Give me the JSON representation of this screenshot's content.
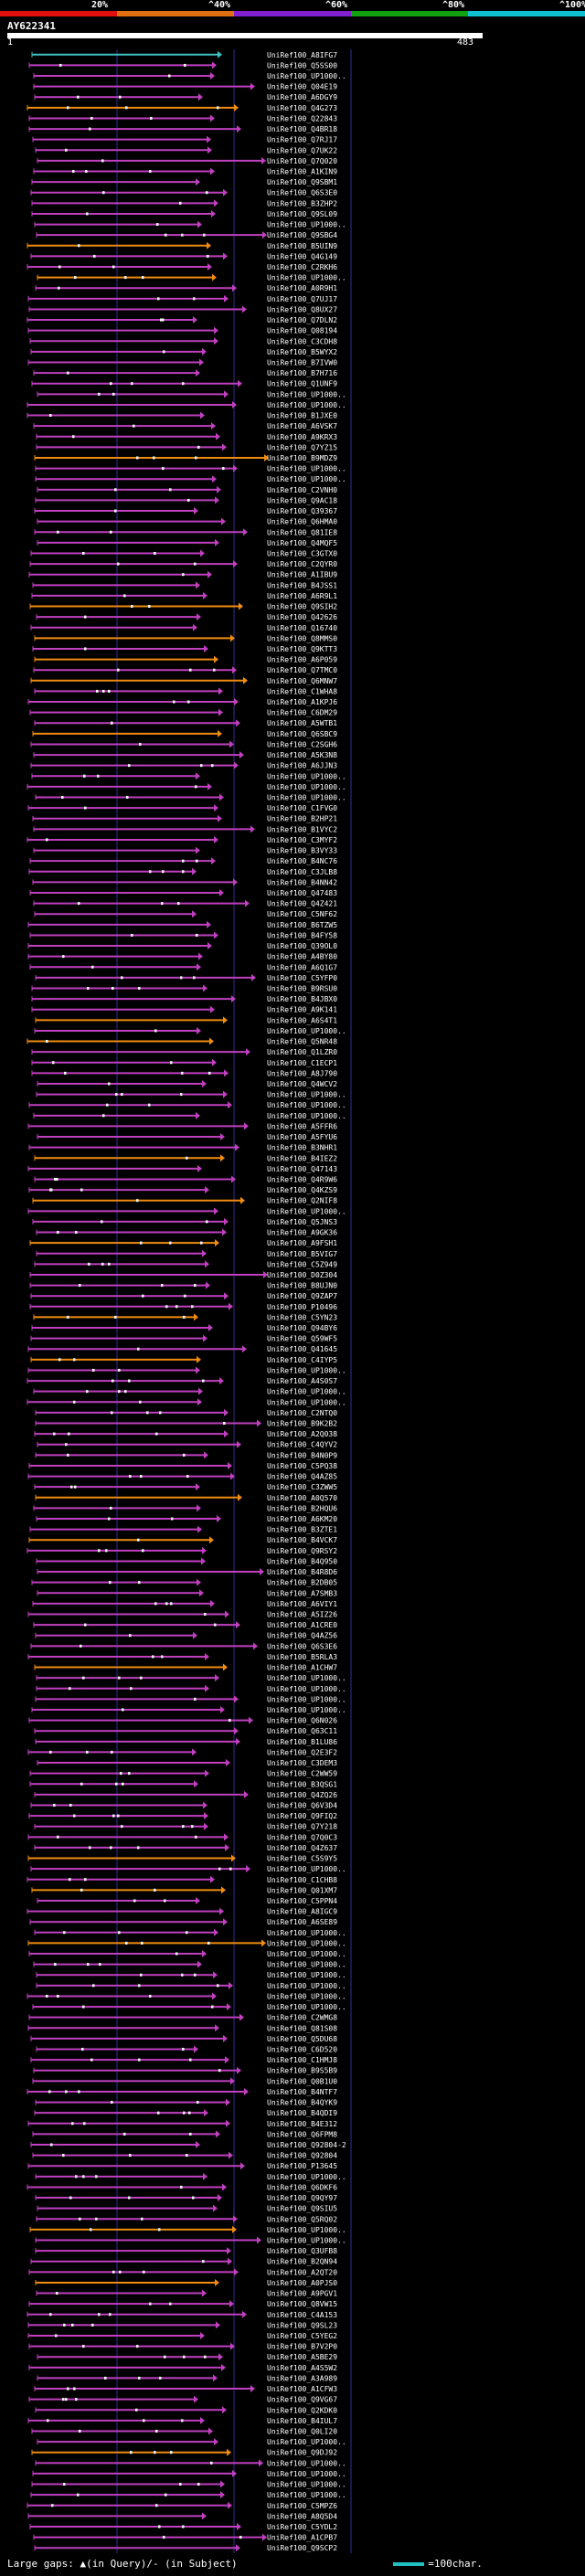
{
  "scale": {
    "labels": [
      "20%",
      "^40%",
      "^60%",
      "^80%",
      "^100%"
    ],
    "colors": [
      "#e01010",
      "#e07010",
      "#8020d0",
      "#10a010",
      "#10c0d0"
    ]
  },
  "query": {
    "id": "AY622341",
    "start": "1",
    "end": "483"
  },
  "colors": {
    "magenta": "#c040c0",
    "orange": "#f08c10",
    "cyan": "#40c0c0",
    "grid": "#303090",
    "label": "#ffffff"
  },
  "hits": [
    "UniRef100_A8IFG7",
    "UniRef100_Q5SS00",
    "UniRef100_UP1000..",
    "UniRef100_Q04E19",
    "UniRef100_A6DGY9",
    "UniRef100_Q4G273",
    "UniRef100_Q22843",
    "UniRef100_Q4BR18",
    "UniRef100_Q7RJ17",
    "UniRef100_Q7UK22",
    "UniRef100_Q7Q020",
    "UniRef100_A1KIN9",
    "UniRef100_Q9SBM1",
    "UniRef100_Q6S3E0",
    "UniRef100_B3ZHP2",
    "UniRef100_Q9SL09",
    "UniRef100_UP1000..",
    "UniRef100_Q9SBG4",
    "UniRef100_B5UIN9",
    "UniRef100_Q4G149",
    "UniRef100_C2RKH6",
    "UniRef100_UP1000..",
    "UniRef100_A0R9H1",
    "UniRef100_Q7UJ17",
    "UniRef100_Q8UX27",
    "UniRef100_Q7DLN2",
    "UniRef100_Q08194",
    "UniRef100_C3CDH8",
    "UniRef100_B5WYX2",
    "UniRef100_B7IVW0",
    "UniRef100_B7H716",
    "UniRef100_Q1UNF9",
    "UniRef100_UP1000..",
    "UniRef100_UP1000..",
    "UniRef100_B1JXE0",
    "UniRef100_A6VSK7",
    "UniRef100_A9KRX3",
    "UniRef100_Q7YZ15",
    "UniRef100_B9MDZ9",
    "UniRef100_UP1000..",
    "UniRef100_UP1000..",
    "UniRef100_C2VNH0",
    "UniRef100_Q9AC18",
    "UniRef100_Q39367",
    "UniRef100_Q6HMA0",
    "UniRef100_Q81IE8",
    "UniRef100_Q4MQF5",
    "UniRef100_C3GTX0",
    "UniRef100_C2QYR0",
    "UniRef100_A1IBU9",
    "UniRef100_B4JSS1",
    "UniRef100_A6R9L1",
    "UniRef100_Q9SIH2",
    "UniRef100_Q42626",
    "UniRef100_Q16740",
    "UniRef100_Q8MMS0",
    "UniRef100_Q9KTT3",
    "UniRef100_A6P059",
    "UniRef100_Q7TMC0",
    "UniRef100_Q6MNW7",
    "UniRef100_C1WHA8",
    "UniRef100_A1KPJ6",
    "UniRef100_C6DM29",
    "UniRef100_A5WTB1",
    "UniRef100_Q6SBC9",
    "UniRef100_C2SGH6",
    "UniRef100_A5K3N8",
    "UniRef100_A6JJN3",
    "UniRef100_UP1000..",
    "UniRef100_UP1000..",
    "UniRef100_UP1000..",
    "UniRef100_C1FVG0",
    "UniRef100_B2HP21",
    "UniRef100_B1VYC2",
    "UniRef100_C3MYF2",
    "UniRef100_B3VY33",
    "UniRef100_B4NC76",
    "UniRef100_C3JLB8",
    "UniRef100_B4NN42",
    "UniRef100_Q47483",
    "UniRef100_Q4Z421",
    "UniRef100_C5NF62",
    "UniRef100_B6TZW5",
    "UniRef100_B4FY58",
    "UniRef100_Q39OL0",
    "UniRef100_A4BY80",
    "UniRef100_A6Q1G7",
    "UniRef100_C5YFP0",
    "UniRef100_B9RSU0",
    "UniRef100_B4JBX0",
    "UniRef100_A9K141",
    "UniRef100_A6S4T1",
    "UniRef100_UP1000..",
    "UniRef100_Q5NR48",
    "UniRef100_Q1LZR0",
    "UniRef100_C1ECP1",
    "UniRef100_A8J790",
    "UniRef100_Q4WCV2",
    "UniRef100_UP1000..",
    "UniRef100_UP1000..",
    "UniRef100_UP1000..",
    "UniRef100_A5FFR6",
    "UniRef100_A5FYU6",
    "UniRef100_B3NHR1",
    "UniRef100_B4IEZ2",
    "UniRef100_Q47143",
    "UniRef100_Q4R9W6",
    "UniRef100_Q4KZS9",
    "UniRef100_Q2NIF8",
    "UniRef100_UP1000..",
    "UniRef100_Q5JNS3",
    "UniRef100_A9GK36",
    "UniRef100_A9FSH1",
    "UniRef100_B5VIG7",
    "UniRef100_C5Z949",
    "UniRef100_D0Z304",
    "UniRef100_B8UJN0",
    "UniRef100_Q9ZAP7",
    "UniRef100_P10496",
    "UniRef100_C5YN23",
    "UniRef100_Q94BY6",
    "UniRef100_Q59WF5",
    "UniRef100_Q41645",
    "UniRef100_C4IYP5",
    "UniRef100_UP1000..",
    "UniRef100_A4S0S7",
    "UniRef100_UP1000..",
    "UniRef100_UP1000..",
    "UniRef100_C2NTQ0",
    "UniRef100_B9K2B2",
    "UniRef100_A2Q038",
    "UniRef100_C4QYV2",
    "UniRef100_B4N0P9",
    "UniRef100_C5PQ38",
    "UniRef100_Q4AZ85",
    "UniRef100_C3ZWW5",
    "UniRef100_A0Q570",
    "UniRef100_B2HQU6",
    "UniRef100_A6KM20",
    "UniRef100_B3ZTE1",
    "UniRef100_B4VCK7",
    "UniRef100_Q9RSY2",
    "UniRef100_B4Q950",
    "UniRef100_B4R8D6",
    "UniRef100_B2DB05",
    "UniRef100_A7SMB3",
    "UniRef100_A6VIY1",
    "UniRef100_A5IZ26",
    "UniRef100_A1CRE0",
    "UniRef100_Q4AZ56",
    "UniRef100_Q6S3E6",
    "UniRef100_B5RLA3",
    "UniRef100_A1CHW7",
    "UniRef100_UP1000..",
    "UniRef100_UP1000..",
    "UniRef100_UP1000..",
    "UniRef100_UP1000..",
    "UniRef100_Q6N026",
    "UniRef100_Q63C11",
    "UniRef100_B1LU86",
    "UniRef100_Q2E3F2",
    "UniRef100_C3DEM3",
    "UniRef100_C2WW59",
    "UniRef100_B3QSG1",
    "UniRef100_Q4ZQ26",
    "UniRef100_Q6V3D4",
    "UniRef100_Q9FIQ2",
    "UniRef100_Q7Y218",
    "UniRef100_Q7Q0C3",
    "UniRef100_Q4Z637",
    "UniRef100_C5S9Y5",
    "UniRef100_UP1000..",
    "UniRef100_C1CHB8",
    "UniRef100_Q01XM7",
    "UniRef100_C5PPN4",
    "UniRef100_A8IGC9",
    "UniRef100_A6SE89",
    "UniRef100_UP1000..",
    "UniRef100_UP1000..",
    "UniRef100_UP1000..",
    "UniRef100_UP1000..",
    "UniRef100_UP1000..",
    "UniRef100_UP1000..",
    "UniRef100_UP1000..",
    "UniRef100_UP1000..",
    "UniRef100_C2WMG8",
    "UniRef100_Q81S08",
    "UniRef100_Q5DU68",
    "UniRef100_C6D520",
    "UniRef100_C1HMJ8",
    "UniRef100_B9S5B9",
    "UniRef100_Q0B1U0",
    "UniRef100_B4NTF7",
    "UniRef100_B4QYK9",
    "UniRef100_B4QDI9",
    "UniRef100_B4E312",
    "UniRef100_Q6FPM8",
    "UniRef100_Q92804-2",
    "UniRef100_Q92804",
    "UniRef100_P13645",
    "UniRef100_UP1000..",
    "UniRef100_Q6DKF6",
    "UniRef100_Q9QY97",
    "UniRef100_Q9SIU5",
    "UniRef100_Q5RQ02",
    "UniRef100_UP1000..",
    "UniRef100_UP1000..",
    "UniRef100_Q3UFB8",
    "UniRef100_B2QN94",
    "UniRef100_A2QT20",
    "UniRef100_A0PJS0",
    "UniRef100_A9PGV1",
    "UniRef100_Q8VW15",
    "UniRef100_C4A153",
    "UniRef100_Q9SL23",
    "UniRef100_C5YEG2",
    "UniRef100_B7V2P0",
    "UniRef100_A5BE29",
    "UniRef100_A4S5W2",
    "UniRef100_A3A989",
    "UniRef100_A1CFW3",
    "UniRef100_Q9VG67",
    "UniRef100_Q2KDK0",
    "UniRef100_B4IUL7",
    "UniRef100_Q0LI20",
    "UniRef100_UP1000..",
    "UniRef100_Q9DJ92",
    "UniRef100_UP1000..",
    "UniRef100_UP1000..",
    "UniRef100_UP1000..",
    "UniRef100_UP1000..",
    "UniRef100_C5MPZ6",
    "UniRef100_A8Q5D4",
    "UniRef100_C5YDL2",
    "UniRef100_A1CPB7",
    "UniRef100_Q9SCP2"
  ],
  "footer": {
    "text_left": "Large gaps: ▲(in Query)/- (in Subject)",
    "text_right": "=100char."
  }
}
